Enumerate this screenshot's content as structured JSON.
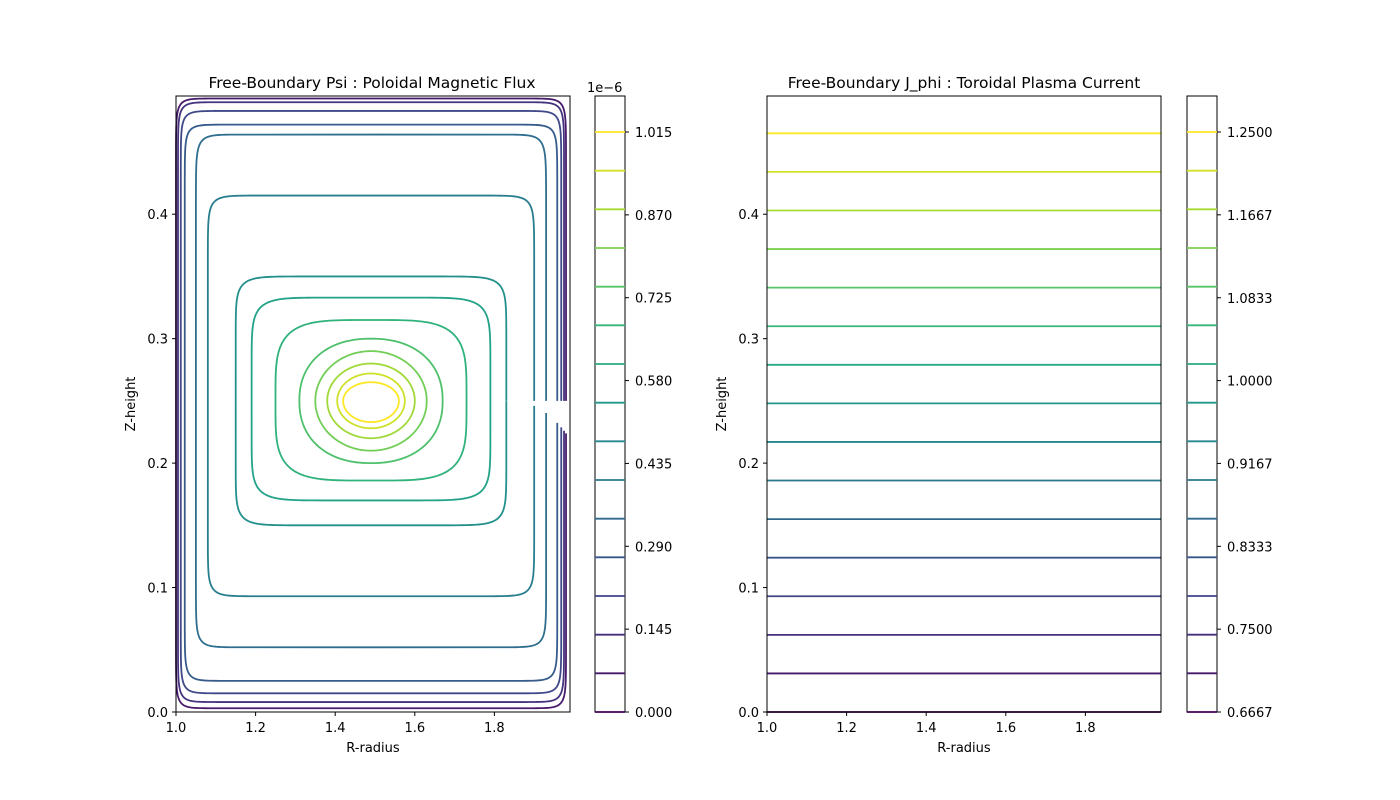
{
  "figure": {
    "background": "#ffffff"
  },
  "chart_data": [
    {
      "type": "contour",
      "title": "Free-Boundary Psi : Poloidal Magnetic Flux",
      "xlabel": "R-radius",
      "ylabel": "Z-height",
      "xlim": [
        1.0,
        1.99
      ],
      "ylim": [
        0.0,
        0.495
      ],
      "x_ticks": [
        "1.0",
        "1.2",
        "1.4",
        "1.6",
        "1.8"
      ],
      "y_ticks": [
        "0.0",
        "0.1",
        "0.2",
        "0.3",
        "0.4"
      ],
      "colormap": "viridis",
      "contour_center": [
        1.49,
        0.25
      ],
      "contour_levels": [
        0.0,
        0.0725,
        0.145,
        0.2175,
        0.29,
        0.3625,
        0.435,
        0.5075,
        0.58,
        0.6525,
        0.725,
        0.7975,
        0.87,
        0.9425,
        1.015
      ],
      "contour_half_widths_r": [
        0.0,
        0.49,
        0.485,
        0.478,
        0.468,
        0.44,
        0.41,
        0.34,
        0.3,
        0.24,
        0.18,
        0.14,
        0.11,
        0.085,
        0.07
      ],
      "contour_half_widths_z_below": [
        0.0,
        0.247,
        0.242,
        0.235,
        0.225,
        0.198,
        0.157,
        0.1,
        0.08,
        0.064,
        0.05,
        0.04,
        0.03,
        0.022,
        0.017
      ],
      "contour_half_widths_z_above": [
        0.0,
        0.243,
        0.24,
        0.233,
        0.222,
        0.214,
        0.165,
        0.1,
        0.083,
        0.065,
        0.05,
        0.04,
        0.03,
        0.022,
        0.015
      ],
      "colorbar": {
        "offset_label": "1e−6",
        "ticks": [
          "0.000",
          "0.145",
          "0.290",
          "0.435",
          "0.580",
          "0.725",
          "0.870",
          "1.015"
        ],
        "level_count": 15,
        "range": [
          0.0,
          1.015
        ]
      }
    },
    {
      "type": "contour",
      "title": "Free-Boundary J_phi : Toroidal Plasma Current",
      "xlabel": "R-radius",
      "ylabel": "Z-height",
      "xlim": [
        1.0,
        1.99
      ],
      "ylim": [
        0.0,
        0.495
      ],
      "x_ticks": [
        "1.0",
        "1.2",
        "1.4",
        "1.6",
        "1.8"
      ],
      "y_ticks": [
        "0.0",
        "0.1",
        "0.2",
        "0.3",
        "0.4"
      ],
      "colormap": "viridis",
      "contour_levels": [
        0.6667,
        0.70837,
        0.75,
        0.79167,
        0.8333,
        0.87497,
        0.9167,
        0.95837,
        1.0,
        1.04167,
        1.0833,
        1.12497,
        1.1667,
        1.20837,
        1.25
      ],
      "contour_z": [
        0.0,
        0.031,
        0.062,
        0.093,
        0.124,
        0.155,
        0.186,
        0.217,
        0.248,
        0.279,
        0.31,
        0.341,
        0.372,
        0.403,
        0.434,
        0.465
      ],
      "colorbar": {
        "offset_label": "",
        "ticks": [
          "0.6667",
          "0.7500",
          "0.8333",
          "0.9167",
          "1.0000",
          "1.0833",
          "1.1667",
          "1.2500"
        ],
        "level_count": 15,
        "range": [
          0.6667,
          1.25
        ]
      }
    }
  ]
}
